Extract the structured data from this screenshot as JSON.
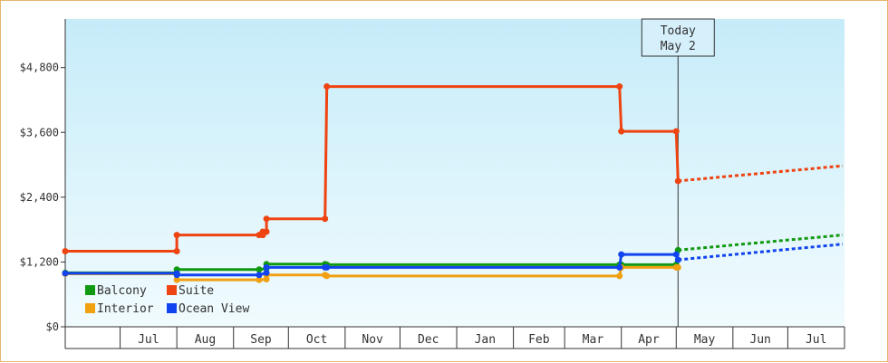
{
  "chart_data": {
    "type": "line",
    "title": "",
    "xlabel": "",
    "ylabel": "",
    "ylim": [
      0,
      5700
    ],
    "y_ticks": [
      {
        "value": 0,
        "label": "$0"
      },
      {
        "value": 1200,
        "label": "$1,200"
      },
      {
        "value": 2400,
        "label": "$2,400"
      },
      {
        "value": 3600,
        "label": "$3,600"
      },
      {
        "value": 4800,
        "label": "$4,800"
      }
    ],
    "x_range": [
      "2025-06-01",
      "2026-07-31"
    ],
    "month_labels": [
      {
        "label": "Jul",
        "start": "2025-07-01",
        "end": "2025-07-31"
      },
      {
        "label": "Aug",
        "start": "2025-08-01",
        "end": "2025-08-31"
      },
      {
        "label": "Sep",
        "start": "2025-09-01",
        "end": "2025-09-30"
      },
      {
        "label": "Oct",
        "start": "2025-10-01",
        "end": "2025-10-31"
      },
      {
        "label": "Nov",
        "start": "2025-11-01",
        "end": "2025-11-30"
      },
      {
        "label": "Dec",
        "start": "2025-12-01",
        "end": "2025-12-31"
      },
      {
        "label": "Jan",
        "start": "2026-01-01",
        "end": "2026-01-31"
      },
      {
        "label": "Feb",
        "start": "2026-02-01",
        "end": "2026-02-28"
      },
      {
        "label": "Mar",
        "start": "2026-03-01",
        "end": "2026-03-31"
      },
      {
        "label": "Apr",
        "start": "2026-04-01",
        "end": "2026-04-30"
      },
      {
        "label": "May",
        "start": "2026-05-01",
        "end": "2026-05-31"
      },
      {
        "label": "Jun",
        "start": "2026-06-01",
        "end": "2026-06-30"
      },
      {
        "label": "Jul",
        "start": "2026-07-01",
        "end": "2026-07-31"
      }
    ],
    "today": {
      "date": "2026-05-02",
      "line1": "Today",
      "line2": "May 2"
    },
    "grid": false,
    "legend_position": "bottom-left",
    "series": [
      {
        "name": "Suite",
        "color": "#ee4411",
        "points": [
          [
            "2025-06-01",
            1400
          ],
          [
            "2025-08-01",
            1400
          ],
          [
            "2025-08-01",
            1700
          ],
          [
            "2025-09-15",
            1700
          ],
          [
            "2025-09-17",
            1700
          ],
          [
            "2025-09-17",
            1760
          ],
          [
            "2025-09-19",
            1760
          ],
          [
            "2025-09-19",
            2000
          ],
          [
            "2025-10-21",
            2000
          ],
          [
            "2025-10-22",
            4450
          ],
          [
            "2026-03-31",
            4450
          ],
          [
            "2026-04-01",
            3620
          ],
          [
            "2026-05-01",
            3620
          ],
          [
            "2026-05-02",
            2700
          ]
        ],
        "forecast": [
          [
            "2026-05-02",
            2700
          ],
          [
            "2026-07-31",
            2980
          ]
        ]
      },
      {
        "name": "Balcony",
        "color": "#119911",
        "points": [
          [
            "2025-06-01",
            1000
          ],
          [
            "2025-08-01",
            1000
          ],
          [
            "2025-08-01",
            1060
          ],
          [
            "2025-09-15",
            1060
          ],
          [
            "2025-09-19",
            1080
          ],
          [
            "2025-09-19",
            1160
          ],
          [
            "2025-10-21",
            1160
          ],
          [
            "2025-10-22",
            1150
          ],
          [
            "2026-03-31",
            1150
          ],
          [
            "2026-04-01",
            1150
          ],
          [
            "2026-05-01",
            1150
          ],
          [
            "2026-05-02",
            1420
          ]
        ],
        "forecast": [
          [
            "2026-05-02",
            1420
          ],
          [
            "2026-07-31",
            1700
          ]
        ]
      },
      {
        "name": "Interior",
        "color": "#f0a010",
        "points": [
          [
            "2025-06-01",
            980
          ],
          [
            "2025-08-01",
            980
          ],
          [
            "2025-08-01",
            870
          ],
          [
            "2025-09-15",
            870
          ],
          [
            "2025-09-19",
            880
          ],
          [
            "2025-09-19",
            960
          ],
          [
            "2025-10-21",
            960
          ],
          [
            "2025-10-22",
            940
          ],
          [
            "2026-03-31",
            940
          ],
          [
            "2026-04-01",
            1100
          ],
          [
            "2026-05-01",
            1100
          ],
          [
            "2026-05-02",
            1100
          ]
        ],
        "forecast": []
      },
      {
        "name": "Ocean View",
        "color": "#1144ee",
        "points": [
          [
            "2025-06-01",
            990
          ],
          [
            "2025-08-01",
            990
          ],
          [
            "2025-08-01",
            960
          ],
          [
            "2025-09-15",
            960
          ],
          [
            "2025-09-19",
            1000
          ],
          [
            "2025-09-19",
            1100
          ],
          [
            "2025-10-21",
            1100
          ],
          [
            "2025-10-22",
            1100
          ],
          [
            "2026-03-31",
            1100
          ],
          [
            "2026-04-01",
            1340
          ],
          [
            "2026-05-01",
            1340
          ],
          [
            "2026-05-02",
            1240
          ]
        ],
        "forecast": [
          [
            "2026-05-02",
            1240
          ],
          [
            "2026-07-31",
            1530
          ]
        ]
      }
    ],
    "legend": [
      {
        "name": "Balcony",
        "color": "#119911"
      },
      {
        "name": "Suite",
        "color": "#ee4411"
      },
      {
        "name": "Interior",
        "color": "#f0a010"
      },
      {
        "name": "Ocean View",
        "color": "#1144ee"
      }
    ]
  }
}
